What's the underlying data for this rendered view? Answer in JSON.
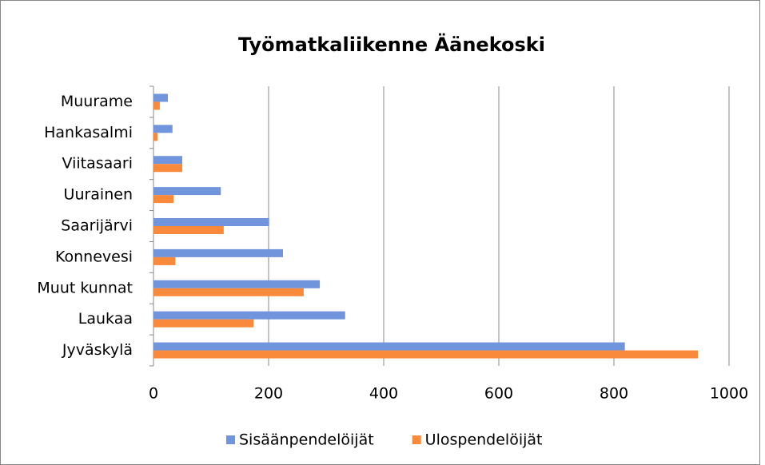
{
  "chart_data": {
    "type": "bar",
    "orientation": "horizontal",
    "title": "Työmatkaliikenne Äänekoski",
    "categories": [
      "Muurame",
      "Hankasalmi",
      "Viitasaari",
      "Uurainen",
      "Saarijärvi",
      "Konnevesi",
      "Muut kunnat",
      "Laukaa",
      "Jyväskylä"
    ],
    "series": [
      {
        "name": "Sisäänpendelöijät",
        "color": "#7195dc",
        "values": [
          25,
          33,
          50,
          117,
          201,
          225,
          289,
          333,
          819
        ]
      },
      {
        "name": "Ulospendelöijät",
        "color": "#f98a3c",
        "values": [
          11,
          7,
          50,
          35,
          122,
          38,
          261,
          174,
          946
        ]
      }
    ],
    "xlim": [
      0,
      1000
    ],
    "xticks": [
      0,
      200,
      400,
      600,
      800,
      1000
    ],
    "grid": true,
    "legend": "bottom"
  }
}
